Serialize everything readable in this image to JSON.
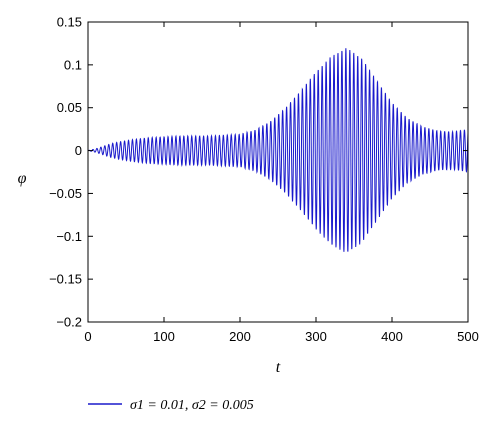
{
  "chart_data": {
    "type": "line",
    "xlabel": "t",
    "ylabel": "φ",
    "xlim": [
      0,
      500
    ],
    "ylim": [
      -0.2,
      0.15
    ],
    "x_ticks": [
      0,
      100,
      200,
      300,
      400,
      500
    ],
    "x_tick_labels": [
      "0",
      "100",
      "200",
      "300",
      "400",
      "500"
    ],
    "y_ticks": [
      0.15,
      0.1,
      0.05,
      0,
      -0.05,
      -0.1,
      -0.15,
      -0.2
    ],
    "y_tick_labels": [
      "0.15",
      "0.1",
      "0.05",
      "0",
      "−0.05",
      "−0.1",
      "−0.15",
      "−0.2"
    ],
    "grid": false,
    "legend_position": "bottom",
    "series": [
      {
        "name": "σ1 = 0.01, σ2 = 0.005",
        "color": "#1a1acc",
        "oscillation_period": 5.2,
        "envelope": {
          "t": [
            0,
            10,
            20,
            30,
            40,
            60,
            80,
            100,
            120,
            140,
            160,
            180,
            200,
            220,
            240,
            260,
            280,
            300,
            320,
            340,
            360,
            380,
            400,
            420,
            440,
            460,
            480,
            500
          ],
          "amplitude": [
            0.0,
            0.002,
            0.005,
            0.008,
            0.01,
            0.013,
            0.015,
            0.016,
            0.017,
            0.017,
            0.017,
            0.018,
            0.019,
            0.024,
            0.034,
            0.05,
            0.07,
            0.092,
            0.11,
            0.12,
            0.108,
            0.082,
            0.056,
            0.038,
            0.028,
            0.023,
            0.022,
            0.025
          ]
        }
      }
    ]
  }
}
